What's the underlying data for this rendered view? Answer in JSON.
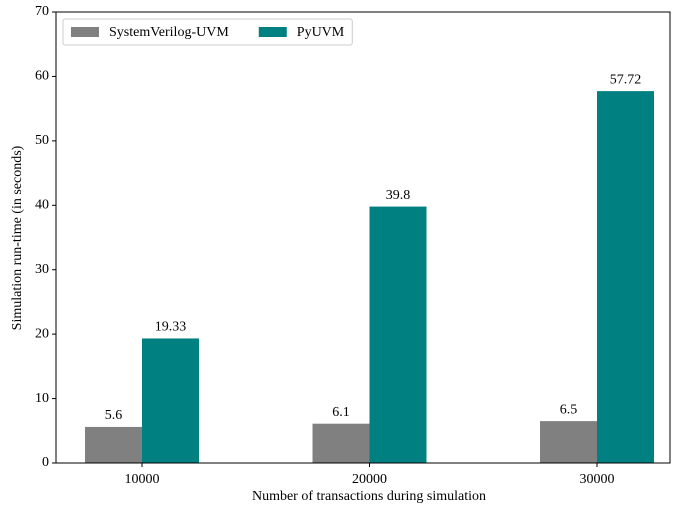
{
  "chart_data": {
    "type": "bar",
    "categories": [
      "10000",
      "20000",
      "30000"
    ],
    "series": [
      {
        "name": "SystemVerilog-UVM",
        "color": "#808080",
        "values": [
          5.6,
          6.1,
          6.5
        ]
      },
      {
        "name": "PyUVM",
        "color": "#008080",
        "values": [
          19.33,
          39.8,
          57.72
        ]
      }
    ],
    "xlabel": "Number of transactions during simulation",
    "ylabel": "Simulation run-time (in seconds)",
    "ylim": [
      0,
      70
    ],
    "yticks": [
      0,
      10,
      20,
      30,
      40,
      50,
      60,
      70
    ],
    "legend": "upper left",
    "grid": false
  }
}
